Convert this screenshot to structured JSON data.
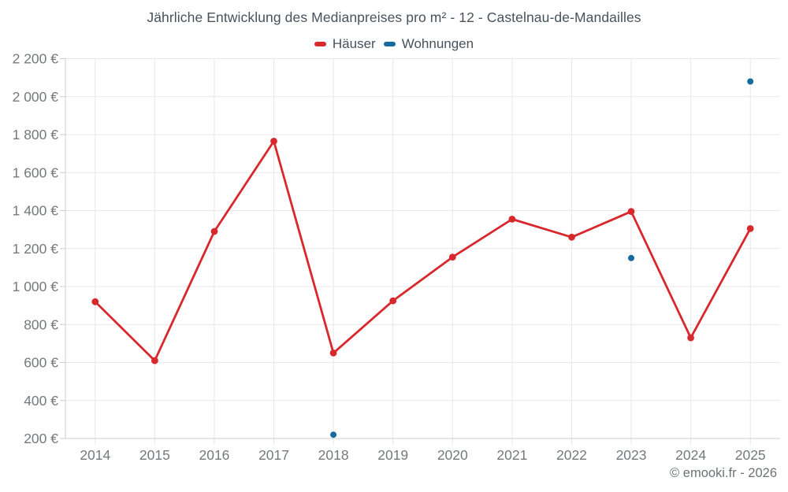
{
  "header": {
    "title": "Jährliche Entwicklung des Medianpreises pro m² - 12 - Castelnau-de-Mandailles"
  },
  "legend": {
    "items": [
      {
        "label": "Häuser",
        "color": "#d7292d"
      },
      {
        "label": "Wohnungen",
        "color": "#166a9f"
      }
    ]
  },
  "footer": {
    "copyright": "© emooki.fr - 2026"
  },
  "chart_data": {
    "type": "line",
    "title": "Jährliche Entwicklung des Medianpreises pro m² - 12 - Castelnau-de-Mandailles",
    "categories": [
      "2014",
      "2015",
      "2016",
      "2017",
      "2018",
      "2019",
      "2020",
      "2021",
      "2022",
      "2023",
      "2024",
      "2025"
    ],
    "series": [
      {
        "name": "Häuser",
        "type": "line",
        "color": "#d7292d",
        "values": [
          920,
          610,
          1290,
          1765,
          650,
          925,
          1155,
          1355,
          1260,
          1395,
          730,
          1305
        ]
      },
      {
        "name": "Wohnungen",
        "type": "scatter",
        "color": "#166a9f",
        "values": [
          null,
          null,
          null,
          null,
          220,
          null,
          null,
          null,
          null,
          1150,
          null,
          2080
        ]
      }
    ],
    "xlabel": "",
    "ylabel": "",
    "ylim": [
      200,
      2200
    ],
    "ytick_step": 200,
    "ytick_suffix": " €",
    "grid": true,
    "legend_position": "top"
  },
  "style": {
    "background": "#ffffff",
    "gridline": "#e8e8e8",
    "axis_line": "#cccccc",
    "tick_label": "#75787c",
    "title_color": "#47525b",
    "footer_color": "#6e7277"
  }
}
